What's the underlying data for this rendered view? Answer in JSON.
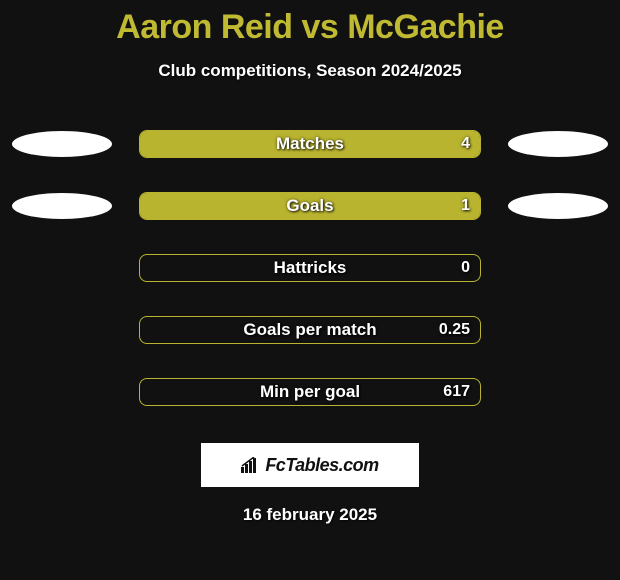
{
  "title": "Aaron Reid vs McGachie",
  "subtitle": "Club competitions, Season 2024/2025",
  "colors": {
    "background": "#111111",
    "title": "#c0b932",
    "text": "#ffffff",
    "bar_fill": "#b9b42f",
    "bar_border": "#b9b42f",
    "avatar": "#ffffff",
    "brand_bg": "#ffffff",
    "brand_text": "#111111"
  },
  "stats": [
    {
      "label": "Matches",
      "value": "4",
      "fill_pct": 100,
      "show_avatars": true
    },
    {
      "label": "Goals",
      "value": "1",
      "fill_pct": 100,
      "show_avatars": true
    },
    {
      "label": "Hattricks",
      "value": "0",
      "fill_pct": 0,
      "show_avatars": false
    },
    {
      "label": "Goals per match",
      "value": "0.25",
      "fill_pct": 0,
      "show_avatars": false
    },
    {
      "label": "Min per goal",
      "value": "617",
      "fill_pct": 0,
      "show_avatars": false
    }
  ],
  "brand": "FcTables.com",
  "date": "16 february 2025"
}
